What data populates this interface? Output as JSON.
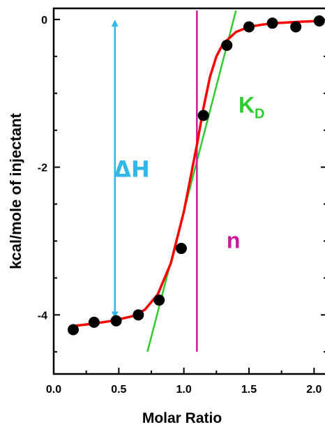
{
  "chart_data": {
    "type": "scatter",
    "xlabel": "Molar Ratio",
    "ylabel": "kcal/mole of injectant",
    "xlim": [
      0.0,
      2.1
    ],
    "ylim": [
      -4.8,
      0.15
    ],
    "x_ticks": [
      "0.0",
      "0.5",
      "1.0",
      "1.5",
      "2.0"
    ],
    "x_tick_values": [
      0.0,
      0.5,
      1.0,
      1.5,
      2.0
    ],
    "y_ticks": [
      "0",
      "-2",
      "-4"
    ],
    "y_tick_values": [
      0,
      -2,
      -4
    ],
    "points": [
      {
        "x": 0.15,
        "y": -4.2
      },
      {
        "x": 0.31,
        "y": -4.1
      },
      {
        "x": 0.48,
        "y": -4.08
      },
      {
        "x": 0.65,
        "y": -4.0
      },
      {
        "x": 0.81,
        "y": -3.8
      },
      {
        "x": 0.98,
        "y": -3.1
      },
      {
        "x": 1.15,
        "y": -1.3
      },
      {
        "x": 1.33,
        "y": -0.35
      },
      {
        "x": 1.5,
        "y": -0.1
      },
      {
        "x": 1.68,
        "y": -0.05
      },
      {
        "x": 1.86,
        "y": -0.1
      },
      {
        "x": 2.04,
        "y": -0.02
      }
    ],
    "fit": {
      "name": "",
      "color": "#ff0000",
      "x": [
        0.15,
        0.3,
        0.45,
        0.6,
        0.7,
        0.8,
        0.9,
        1.0,
        1.05,
        1.1,
        1.15,
        1.2,
        1.25,
        1.3,
        1.4,
        1.5,
        1.6,
        1.7,
        1.8,
        1.9,
        2.05
      ],
      "y": [
        -4.15,
        -4.12,
        -4.08,
        -4.02,
        -3.93,
        -3.72,
        -3.3,
        -2.6,
        -2.15,
        -1.7,
        -1.2,
        -0.78,
        -0.5,
        -0.33,
        -0.17,
        -0.1,
        -0.07,
        -0.05,
        -0.04,
        -0.03,
        -0.02
      ]
    },
    "annotations": [
      {
        "label": "ΔH",
        "color": "#35b6e8",
        "type": "double-arrow",
        "x": 0.47,
        "y_from": -4.0,
        "y_to": -0.05,
        "text_x": 0.6,
        "text_y": -2.0
      },
      {
        "label": "K",
        "subscript": "D",
        "color": "#2ecc2e",
        "type": "tangent-line",
        "x_from": 0.72,
        "y_from": -4.5,
        "x_to": 1.4,
        "y_to": 0.12,
        "text_x": 1.52,
        "text_y": -1.15
      },
      {
        "label": "n",
        "color": "#cc1a9a",
        "type": "vertical-line",
        "x": 1.1,
        "y_from": -4.5,
        "y_to": 0.12,
        "text_x": 1.38,
        "text_y": -3.0
      }
    ],
    "marker_color": "#000000",
    "grid": false
  }
}
